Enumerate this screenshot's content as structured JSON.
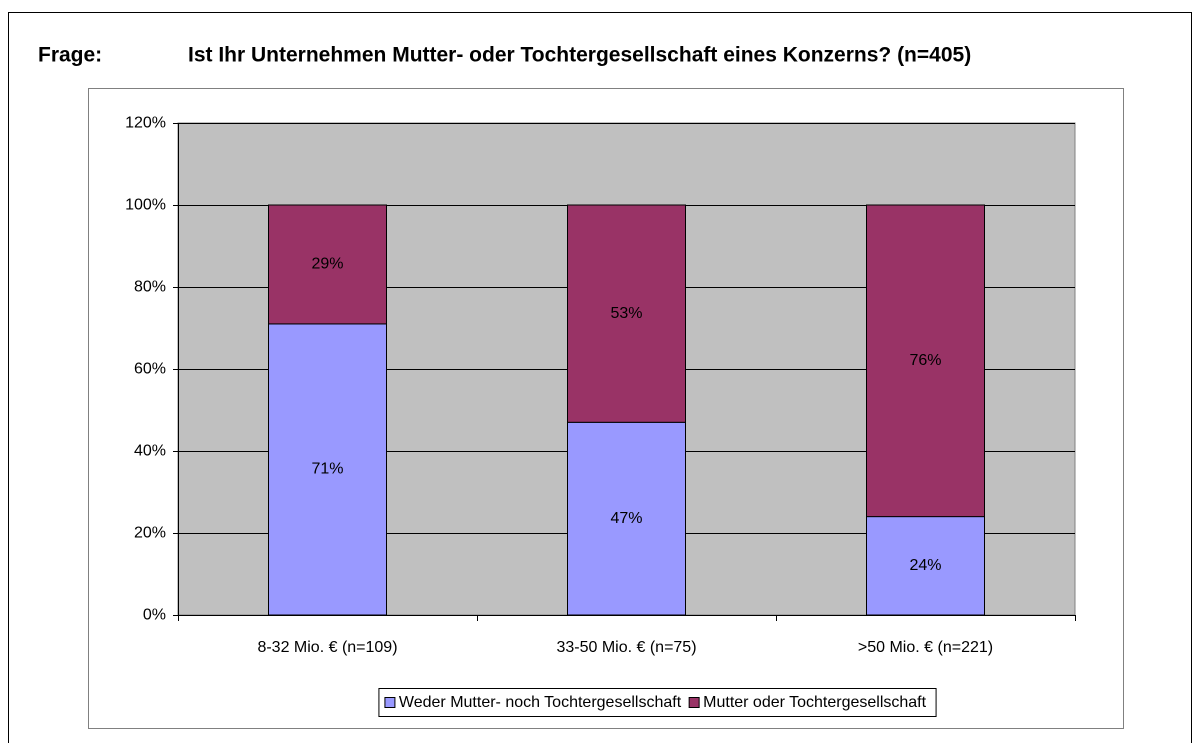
{
  "chart_data": {
    "type": "stacked_bar",
    "title_label": "Frage:",
    "title": "Ist Ihr Unternehmen Mutter- oder Tochtergesellschaft eines Konzerns? (n=405)",
    "categories": [
      "8-32 Mio. € (n=109)",
      "33-50 Mio. € (n=75)",
      ">50 Mio. € (n=221)"
    ],
    "series": [
      {
        "name": "Weder Mutter- noch Tochtergesellschaft",
        "color": "#9999ff",
        "values": [
          71,
          47,
          24
        ],
        "value_labels": [
          "71%",
          "47%",
          "24%"
        ]
      },
      {
        "name": "Mutter oder Tochtergesellschaft",
        "color": "#993366",
        "values": [
          29,
          53,
          76
        ],
        "value_labels": [
          "29%",
          "53%",
          "76%"
        ]
      }
    ],
    "ylim": [
      0,
      120
    ],
    "yticks": [
      {
        "value": 0,
        "label": "0%"
      },
      {
        "value": 20,
        "label": "20%"
      },
      {
        "value": 40,
        "label": "40%"
      },
      {
        "value": 60,
        "label": "60%"
      },
      {
        "value": 80,
        "label": "80%"
      },
      {
        "value": 100,
        "label": "100%"
      },
      {
        "value": 120,
        "label": "120%"
      }
    ],
    "grid": true,
    "plot_background": "#c0c0c0",
    "legend": "bottom"
  }
}
